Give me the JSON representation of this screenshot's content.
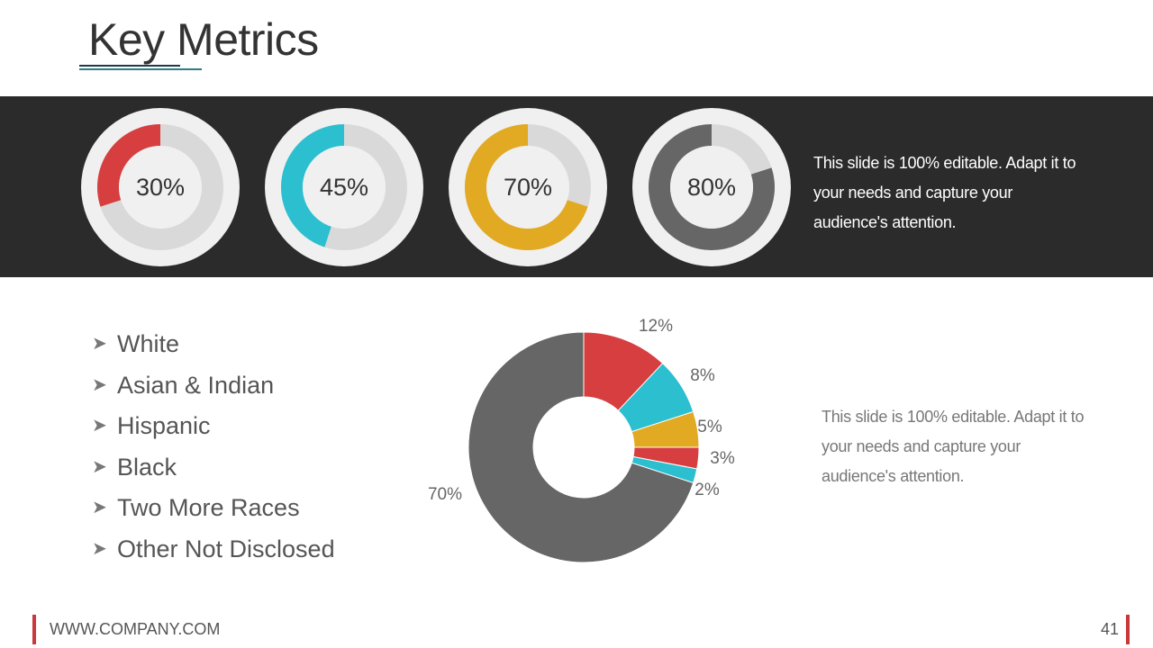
{
  "title": "Key Metrics",
  "gauges": [
    {
      "label": "30%",
      "value": 30,
      "color": "#d63e3f"
    },
    {
      "label": "45%",
      "value": 45,
      "color": "#2bbfd0"
    },
    {
      "label": "70%",
      "value": 70,
      "color": "#e2a922"
    },
    {
      "label": "80%",
      "value": 80,
      "color": "#666666"
    }
  ],
  "band_text": "This slide is 100% editable. Adapt it to your needs and capture your audience's attention.",
  "legend_items": [
    "White",
    "Asian & Indian",
    "Hispanic",
    "Black",
    "Two More Races",
    "Other Not Disclosed"
  ],
  "side_text": "This slide is 100% editable. Adapt it to your needs and capture your audience's attention.",
  "footer": {
    "url": "WWW.COMPANY.COM",
    "page": "41"
  },
  "colors": {
    "red": "#d63e3f",
    "cyan": "#2bbfd0",
    "gold": "#e2a922",
    "gray": "#666666",
    "track": "#d9d9d9",
    "band": "#2b2b2b"
  },
  "chart_data": {
    "type": "pie",
    "style": "donut",
    "slices": [
      {
        "label": "12%",
        "value": 12,
        "color": "#d63e3f"
      },
      {
        "label": "8%",
        "value": 8,
        "color": "#2bbfd0"
      },
      {
        "label": "5%",
        "value": 5,
        "color": "#e2a922"
      },
      {
        "label": "3%",
        "value": 3,
        "color": "#d63e3f"
      },
      {
        "label": "2%",
        "value": 2,
        "color": "#2bbfd0"
      },
      {
        "label": "70%",
        "value": 70,
        "color": "#666666"
      }
    ]
  }
}
